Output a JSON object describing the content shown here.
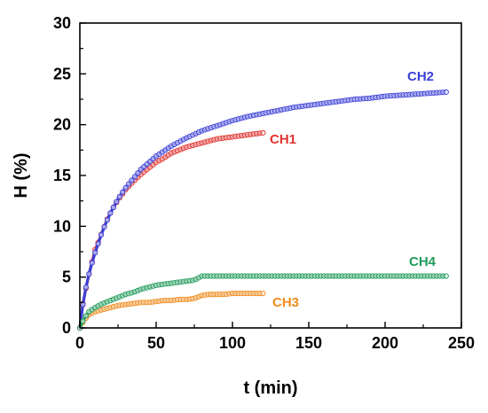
{
  "chart_data": {
    "type": "scatter",
    "xlabel": "t (min)",
    "ylabel": "H (%)",
    "xlim": [
      0,
      250
    ],
    "ylim": [
      0,
      30
    ],
    "x_ticks": [
      "0",
      "50",
      "100",
      "150",
      "200",
      "250"
    ],
    "y_ticks": [
      "0",
      "5",
      "10",
      "15",
      "20",
      "25",
      "30"
    ],
    "grid": false,
    "legend": "none",
    "series": [
      {
        "name": "CH1",
        "color": "#e0322f",
        "x": [
          0,
          2,
          4,
          6,
          8,
          10,
          12,
          15,
          18,
          21,
          25,
          30,
          35,
          40,
          45,
          50,
          55,
          60,
          65,
          70,
          75,
          80,
          85,
          90,
          95,
          100,
          105,
          110,
          115,
          120
        ],
        "y": [
          0,
          2.4,
          3.9,
          5.3,
          6.5,
          7.7,
          8.4,
          9.6,
          10.7,
          11.6,
          12.6,
          13.6,
          14.4,
          15.1,
          15.7,
          16.3,
          16.7,
          17.2,
          17.5,
          17.8,
          18.0,
          18.2,
          18.4,
          18.6,
          18.7,
          18.8,
          18.9,
          19.0,
          19.1,
          19.2
        ]
      },
      {
        "name": "CH2",
        "color": "#3b3fd6",
        "x": [
          0,
          2,
          4,
          6,
          8,
          10,
          15,
          20,
          25,
          30,
          40,
          50,
          60,
          70,
          80,
          90,
          100,
          110,
          120,
          130,
          140,
          150,
          160,
          170,
          180,
          190,
          200,
          210,
          220,
          230,
          240
        ],
        "y": [
          0,
          2.3,
          4.0,
          5.3,
          6.4,
          7.4,
          9.6,
          11.3,
          12.7,
          13.8,
          15.6,
          16.9,
          17.9,
          18.7,
          19.4,
          19.9,
          20.4,
          20.8,
          21.1,
          21.4,
          21.7,
          21.9,
          22.1,
          22.3,
          22.5,
          22.6,
          22.8,
          22.9,
          23.0,
          23.1,
          23.2
        ]
      },
      {
        "name": "CH3",
        "color": "#f08a1c",
        "x": [
          0,
          3,
          6,
          10,
          15,
          20,
          25,
          30,
          35,
          40,
          45,
          50,
          55,
          60,
          65,
          70,
          75,
          80,
          85,
          90,
          95,
          100,
          105,
          110,
          115,
          120
        ],
        "y": [
          0,
          0.8,
          1.3,
          1.6,
          1.8,
          2.0,
          2.2,
          2.3,
          2.4,
          2.5,
          2.5,
          2.6,
          2.7,
          2.7,
          2.8,
          2.8,
          2.9,
          3.2,
          3.3,
          3.3,
          3.3,
          3.4,
          3.4,
          3.4,
          3.4,
          3.4
        ]
      },
      {
        "name": "CH4",
        "color": "#1f9a5a",
        "x": [
          0,
          3,
          6,
          10,
          15,
          20,
          25,
          30,
          35,
          40,
          45,
          50,
          55,
          60,
          65,
          70,
          75,
          80,
          90,
          100,
          110,
          120,
          130,
          140,
          150,
          160,
          170,
          180,
          190,
          200,
          210,
          220,
          230,
          240
        ],
        "y": [
          0,
          1.0,
          1.6,
          2.0,
          2.4,
          2.7,
          3.0,
          3.3,
          3.5,
          3.8,
          4.0,
          4.2,
          4.3,
          4.4,
          4.5,
          4.6,
          4.7,
          5.1,
          5.1,
          5.1,
          5.1,
          5.1,
          5.1,
          5.1,
          5.1,
          5.1,
          5.1,
          5.1,
          5.1,
          5.1,
          5.1,
          5.1,
          5.1,
          5.1
        ]
      }
    ]
  }
}
